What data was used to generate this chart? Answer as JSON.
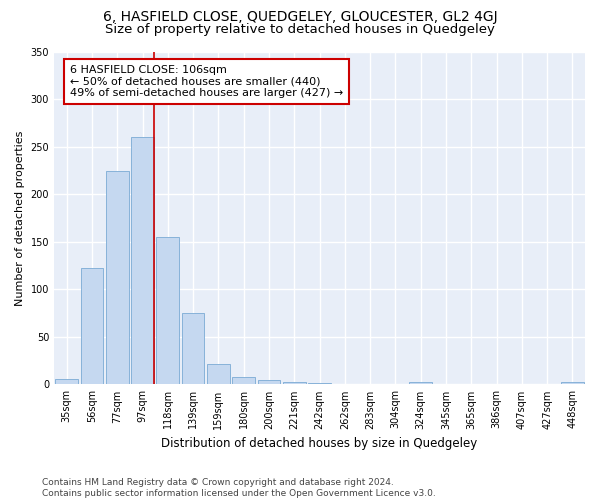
{
  "title": "6, HASFIELD CLOSE, QUEDGELEY, GLOUCESTER, GL2 4GJ",
  "subtitle": "Size of property relative to detached houses in Quedgeley",
  "xlabel": "Distribution of detached houses by size in Quedgeley",
  "ylabel": "Number of detached properties",
  "bar_labels": [
    "35sqm",
    "56sqm",
    "77sqm",
    "97sqm",
    "118sqm",
    "139sqm",
    "159sqm",
    "180sqm",
    "200sqm",
    "221sqm",
    "242sqm",
    "262sqm",
    "283sqm",
    "304sqm",
    "324sqm",
    "345sqm",
    "365sqm",
    "386sqm",
    "407sqm",
    "427sqm",
    "448sqm"
  ],
  "bar_values": [
    6,
    122,
    224,
    260,
    155,
    75,
    21,
    8,
    5,
    3,
    1,
    0,
    0,
    0,
    3,
    0,
    0,
    0,
    0,
    0,
    3
  ],
  "bar_color": "#c5d8f0",
  "bar_edge_color": "#7aaad4",
  "bg_color": "#e8eef8",
  "grid_color": "#ffffff",
  "vline_x": 3.45,
  "vline_color": "#cc0000",
  "annotation_text": "6 HASFIELD CLOSE: 106sqm\n← 50% of detached houses are smaller (440)\n49% of semi-detached houses are larger (427) →",
  "ylim": [
    0,
    350
  ],
  "yticks": [
    0,
    50,
    100,
    150,
    200,
    250,
    300,
    350
  ],
  "footnote": "Contains HM Land Registry data © Crown copyright and database right 2024.\nContains public sector information licensed under the Open Government Licence v3.0.",
  "title_fontsize": 10,
  "subtitle_fontsize": 9.5,
  "xlabel_fontsize": 8.5,
  "ylabel_fontsize": 8,
  "tick_fontsize": 7,
  "annot_fontsize": 8,
  "footnote_fontsize": 6.5
}
